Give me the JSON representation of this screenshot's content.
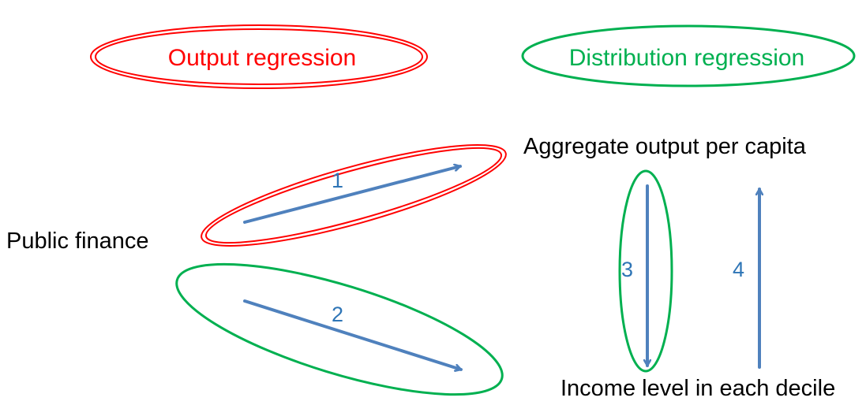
{
  "legend": {
    "output_regression": {
      "label": "Output regression",
      "color": "#ff0000"
    },
    "distribution_regression": {
      "label": "Distribution regression",
      "color": "#00b050"
    }
  },
  "nodes": {
    "public_finance": "Public finance",
    "aggregate_output": "Aggregate output per capita",
    "income_level": "Income level in each decile"
  },
  "arrows": {
    "color": "#4f81bd",
    "label_color": "#2e75b6",
    "items": [
      {
        "number": "1",
        "from": "Public finance",
        "to": "Aggregate output per capita"
      },
      {
        "number": "2",
        "from": "Public finance",
        "to": "Income level in each decile"
      },
      {
        "number": "3",
        "from": "Aggregate output per capita",
        "to": "Income level in each decile"
      },
      {
        "number": "4",
        "from": "Income level in each decile",
        "to": "Aggregate output per capita"
      }
    ]
  }
}
